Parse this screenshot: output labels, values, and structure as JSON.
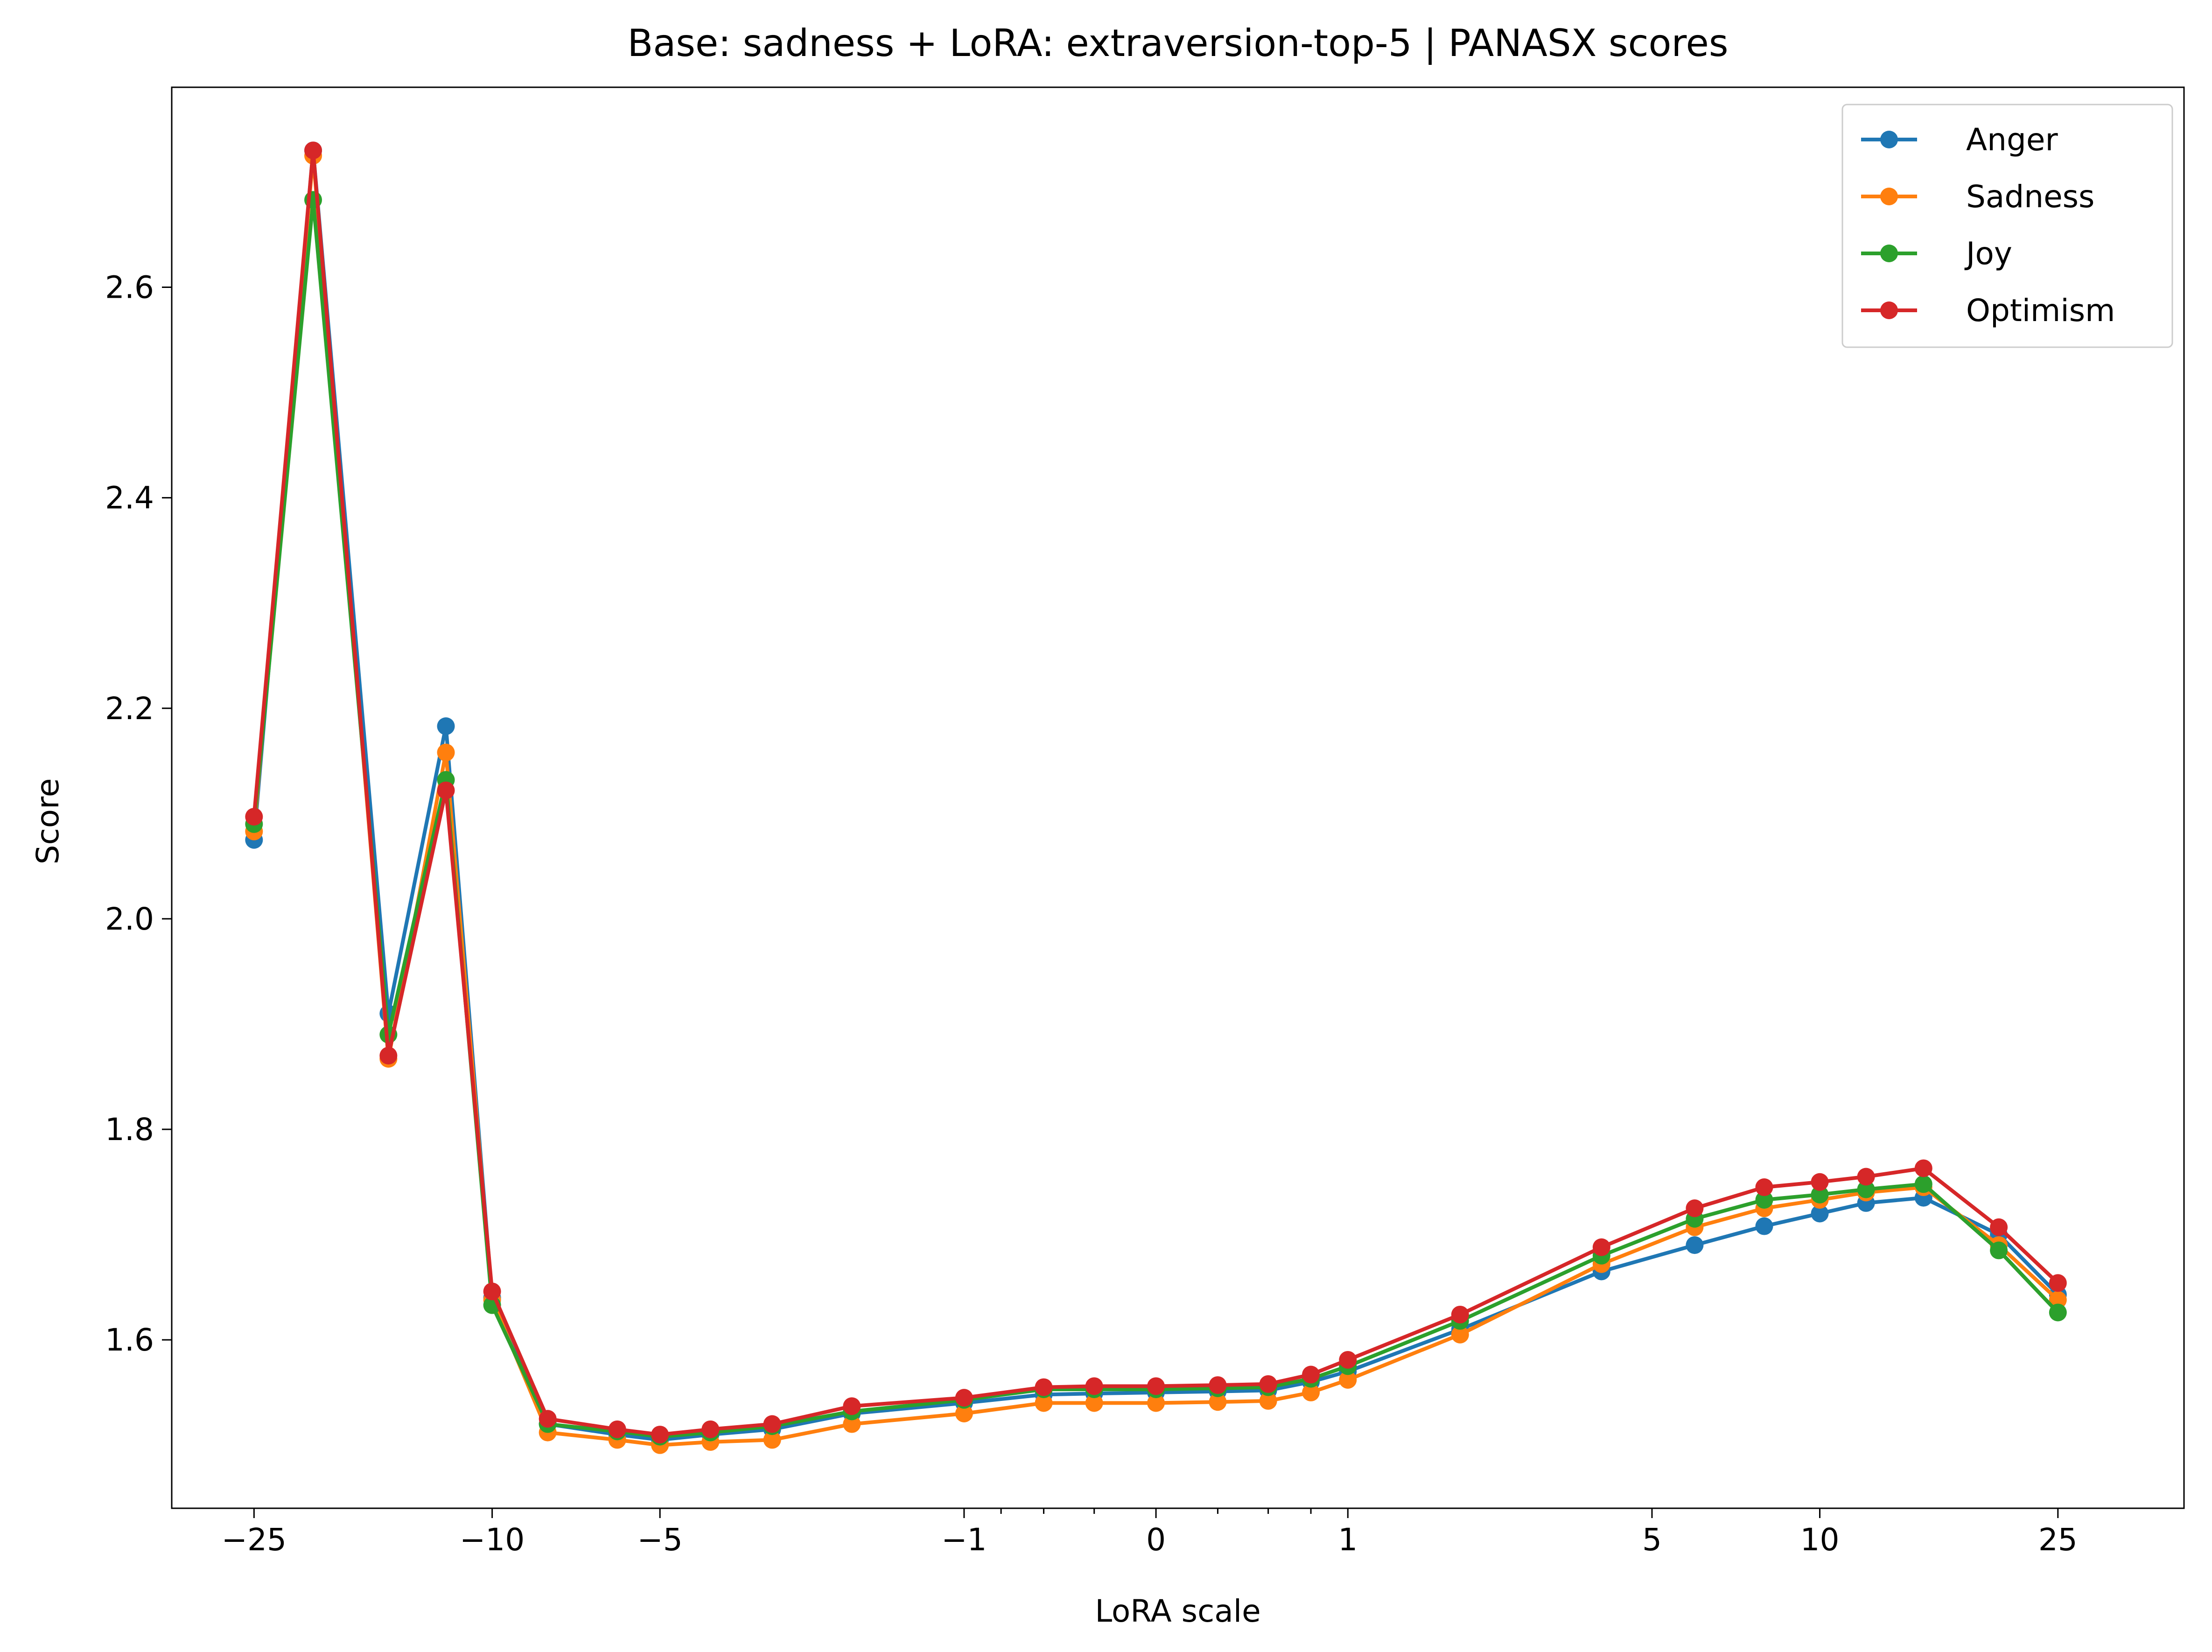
{
  "chart_data": {
    "type": "line",
    "title": "Base: sadness + LoRA: extraversion-top-5 | PANASX scores",
    "xlabel": "LoRA scale",
    "ylabel": "Score",
    "xscale": "symlog",
    "xlim": [
      -34,
      40
    ],
    "ylim": [
      1.44,
      2.79
    ],
    "xticks": [
      -25,
      -10,
      -5,
      -1,
      0,
      1,
      5,
      10,
      25
    ],
    "xtick_labels": [
      "−25",
      "−10",
      "−5",
      "−1",
      "0",
      "1",
      "5",
      "10",
      "25"
    ],
    "yticks": [
      1.6,
      1.8,
      2.0,
      2.2,
      2.4,
      2.6
    ],
    "ytick_labels": [
      "1.6",
      "1.8",
      "2.0",
      "2.2",
      "2.4",
      "2.6"
    ],
    "grid": false,
    "legend_position": "top-right",
    "x": [
      -25,
      -20,
      -15,
      -12,
      -10,
      -8,
      -6,
      -5,
      -4,
      -3,
      -2,
      -1,
      -0.5,
      -0.25,
      0,
      0.25,
      0.5,
      0.75,
      1,
      2,
      4,
      6,
      8,
      10,
      12,
      15,
      20,
      25
    ],
    "series": [
      {
        "name": "Anger",
        "color": "#1f77b4",
        "values": [
          2.075,
          2.73,
          1.91,
          2.183,
          1.64,
          1.52,
          1.51,
          1.505,
          1.51,
          1.515,
          1.53,
          1.54,
          1.548,
          1.549,
          1.55,
          1.551,
          1.552,
          1.56,
          1.57,
          1.61,
          1.665,
          1.69,
          1.708,
          1.72,
          1.73,
          1.735,
          1.7,
          1.643
        ]
      },
      {
        "name": "Sadness",
        "color": "#ff7f0e",
        "values": [
          2.083,
          2.725,
          1.867,
          2.158,
          1.638,
          1.512,
          1.505,
          1.5,
          1.503,
          1.505,
          1.52,
          1.53,
          1.54,
          1.54,
          1.54,
          1.541,
          1.542,
          1.55,
          1.562,
          1.605,
          1.672,
          1.707,
          1.725,
          1.733,
          1.74,
          1.745,
          1.69,
          1.638
        ]
      },
      {
        "name": "Joy",
        "color": "#2ca02c",
        "values": [
          2.09,
          2.683,
          1.89,
          2.132,
          1.633,
          1.52,
          1.513,
          1.508,
          1.512,
          1.518,
          1.532,
          1.543,
          1.553,
          1.553,
          1.553,
          1.554,
          1.555,
          1.563,
          1.575,
          1.618,
          1.68,
          1.715,
          1.733,
          1.738,
          1.743,
          1.748,
          1.685,
          1.626
        ]
      },
      {
        "name": "Optimism",
        "color": "#d62728",
        "values": [
          2.097,
          2.73,
          1.87,
          2.122,
          1.646,
          1.525,
          1.515,
          1.51,
          1.515,
          1.52,
          1.537,
          1.545,
          1.555,
          1.556,
          1.556,
          1.557,
          1.558,
          1.567,
          1.581,
          1.624,
          1.688,
          1.725,
          1.745,
          1.75,
          1.755,
          1.763,
          1.707,
          1.654
        ]
      }
    ]
  }
}
